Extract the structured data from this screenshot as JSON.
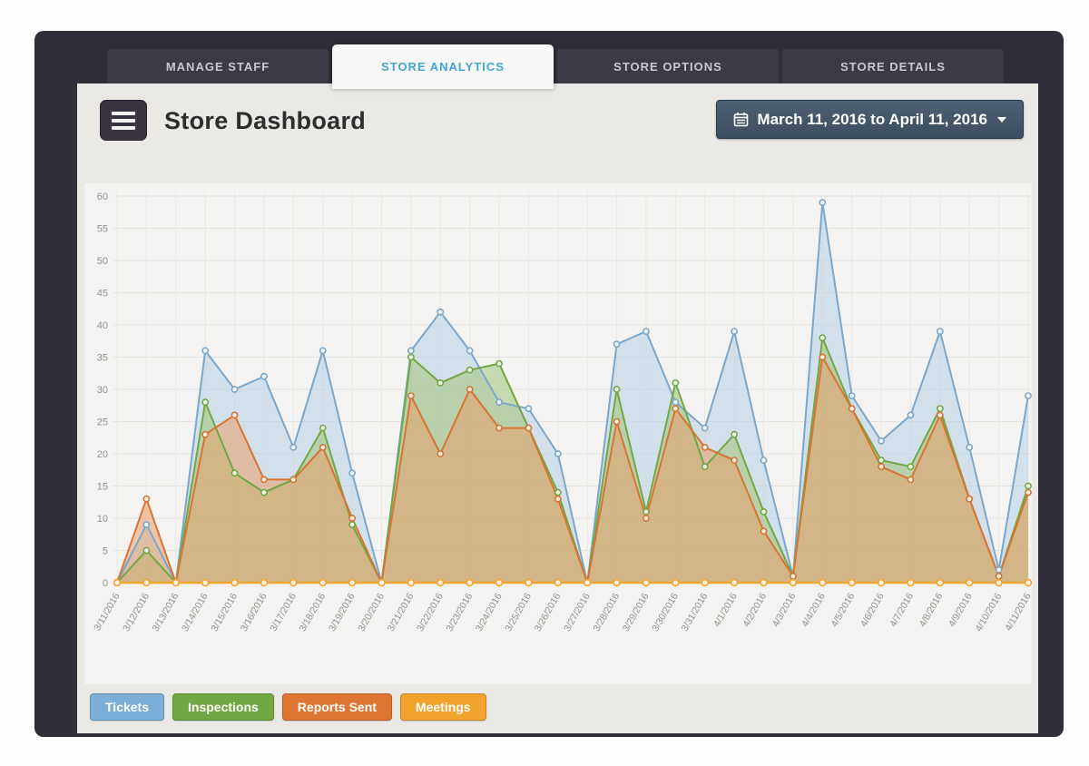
{
  "tabs": [
    {
      "label": "MANAGE STAFF",
      "active": false
    },
    {
      "label": "STORE ANALYTICS",
      "active": true
    },
    {
      "label": "STORE OPTIONS",
      "active": false
    },
    {
      "label": "STORE DETAILS",
      "active": false
    }
  ],
  "header": {
    "title": "Store Dashboard",
    "date_range": "March 11, 2016 to April 11, 2016"
  },
  "colors": {
    "frame": "#322e39",
    "card": "#ebe9e6",
    "active_tab_text": "#3fa7d2",
    "grid": "#e3e2df",
    "axis_text": "#92918f"
  },
  "chart_data": {
    "type": "area",
    "title": "",
    "xlabel": "",
    "ylabel": "",
    "ylim": [
      0,
      60
    ],
    "ytick_step": 5,
    "grid": true,
    "legend_position": "bottom",
    "x_rotation": -60,
    "categories": [
      "3/11/2016",
      "3/12/2016",
      "3/13/2016",
      "3/14/2016",
      "3/15/2016",
      "3/16/2016",
      "3/17/2016",
      "3/18/2016",
      "3/19/2016",
      "3/20/2016",
      "3/21/2016",
      "3/22/2016",
      "3/23/2016",
      "3/24/2016",
      "3/25/2016",
      "3/26/2016",
      "3/27/2016",
      "3/28/2016",
      "3/29/2016",
      "3/30/2016",
      "3/31/2016",
      "4/1/2016",
      "4/2/2016",
      "4/3/2016",
      "4/4/2016",
      "4/5/2016",
      "4/6/2016",
      "4/7/2016",
      "4/8/2016",
      "4/9/2016",
      "4/10/2016",
      "4/11/2016"
    ],
    "series": [
      {
        "name": "Tickets",
        "color": "#7ba7cc",
        "fill": "#b6cfe5",
        "legend_color": "#7bafd7",
        "values": [
          0,
          9,
          0,
          36,
          30,
          32,
          21,
          36,
          17,
          0,
          36,
          42,
          36,
          28,
          27,
          20,
          0,
          37,
          39,
          28,
          24,
          39,
          19,
          1,
          59,
          29,
          22,
          26,
          39,
          21,
          2,
          29
        ]
      },
      {
        "name": "Inspections",
        "color": "#71a843",
        "fill": "#a3c478",
        "legend_color": "#72a844",
        "values": [
          0,
          5,
          0,
          28,
          17,
          14,
          16,
          24,
          9,
          0,
          35,
          31,
          33,
          34,
          24,
          14,
          0,
          30,
          11,
          31,
          18,
          23,
          11,
          1,
          38,
          27,
          19,
          18,
          27,
          13,
          1,
          15
        ]
      },
      {
        "name": "Reports Sent",
        "color": "#d97434",
        "fill": "#e9a169",
        "legend_color": "#df7532",
        "values": [
          0,
          13,
          0,
          23,
          26,
          16,
          16,
          21,
          10,
          0,
          29,
          20,
          30,
          24,
          24,
          13,
          0,
          25,
          10,
          27,
          21,
          19,
          8,
          1,
          35,
          27,
          18,
          16,
          26,
          13,
          1,
          14
        ]
      },
      {
        "name": "Meetings",
        "color": "#f1a430",
        "fill": "#f1a430",
        "legend_color": "#f2a32e",
        "values": [
          0,
          0,
          0,
          0,
          0,
          0,
          0,
          0,
          0,
          0,
          0,
          0,
          0,
          0,
          0,
          0,
          0,
          0,
          0,
          0,
          0,
          0,
          0,
          0,
          0,
          0,
          0,
          0,
          0,
          0,
          0,
          0
        ]
      }
    ]
  }
}
